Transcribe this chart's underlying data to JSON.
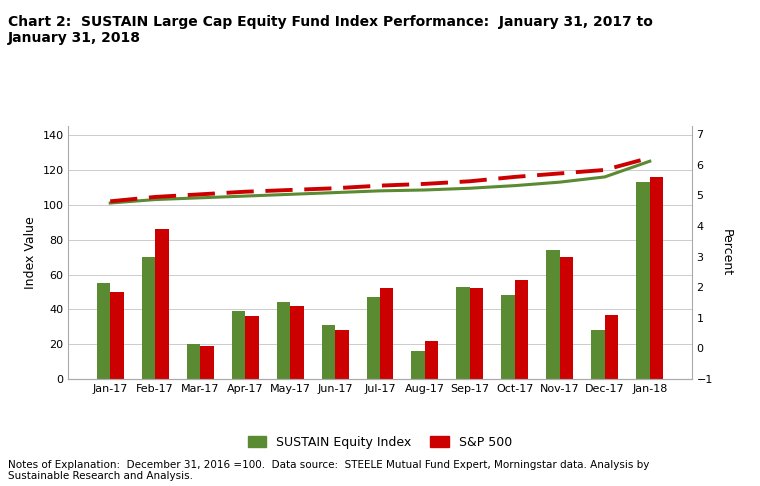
{
  "title": "Chart 2:  SUSTAIN Large Cap Equity Fund Index Performance:  January 31, 2017 to\nJanuary 31, 2018",
  "categories": [
    "Jan-17",
    "Feb-17",
    "Mar-17",
    "Apr-17",
    "May-17",
    "Jun-17",
    "Jul-17",
    "Aug-17",
    "Sep-17",
    "Oct-17",
    "Nov-17",
    "Dec-17",
    "Jan-18"
  ],
  "bar_sustain": [
    55,
    70,
    20,
    39,
    44,
    31,
    47,
    16,
    53,
    48,
    74,
    28,
    113
  ],
  "bar_sp500": [
    50,
    86,
    19,
    36,
    42,
    28,
    52,
    22,
    52,
    57,
    70,
    37,
    116
  ],
  "line_sustain": [
    101,
    103,
    104,
    105,
    106,
    107,
    108,
    108.5,
    109.5,
    111,
    113,
    116,
    125
  ],
  "line_sp500": [
    102,
    104.5,
    106,
    107.5,
    108.5,
    109.5,
    111,
    112,
    113.5,
    116,
    118,
    120,
    127
  ],
  "bar_color_sustain": "#5a8a32",
  "bar_color_sp500": "#cc0000",
  "line_color_sustain": "#5a8a32",
  "line_color_sp500": "#cc0000",
  "left_ylim": [
    0,
    145
  ],
  "left_yticks": [
    0,
    20,
    40,
    60,
    80,
    100,
    120,
    140
  ],
  "right_ylim": [
    -1,
    7.25
  ],
  "right_yticks": [
    -1,
    0,
    1,
    2,
    3,
    4,
    5,
    6,
    7
  ],
  "ylabel_left": "Index Value",
  "ylabel_right": "Percent",
  "legend_labels": [
    "SUSTAIN Equity Index",
    "S&P 500"
  ],
  "note": "Notes of Explanation:  December 31, 2016 =100.  Data source:  STEELE Mutual Fund Expert, Morningstar data. Analysis by\nSustainable Research and Analysis.",
  "background_color": "#ffffff",
  "grid_color": "#cccccc",
  "bar_width": 0.3
}
